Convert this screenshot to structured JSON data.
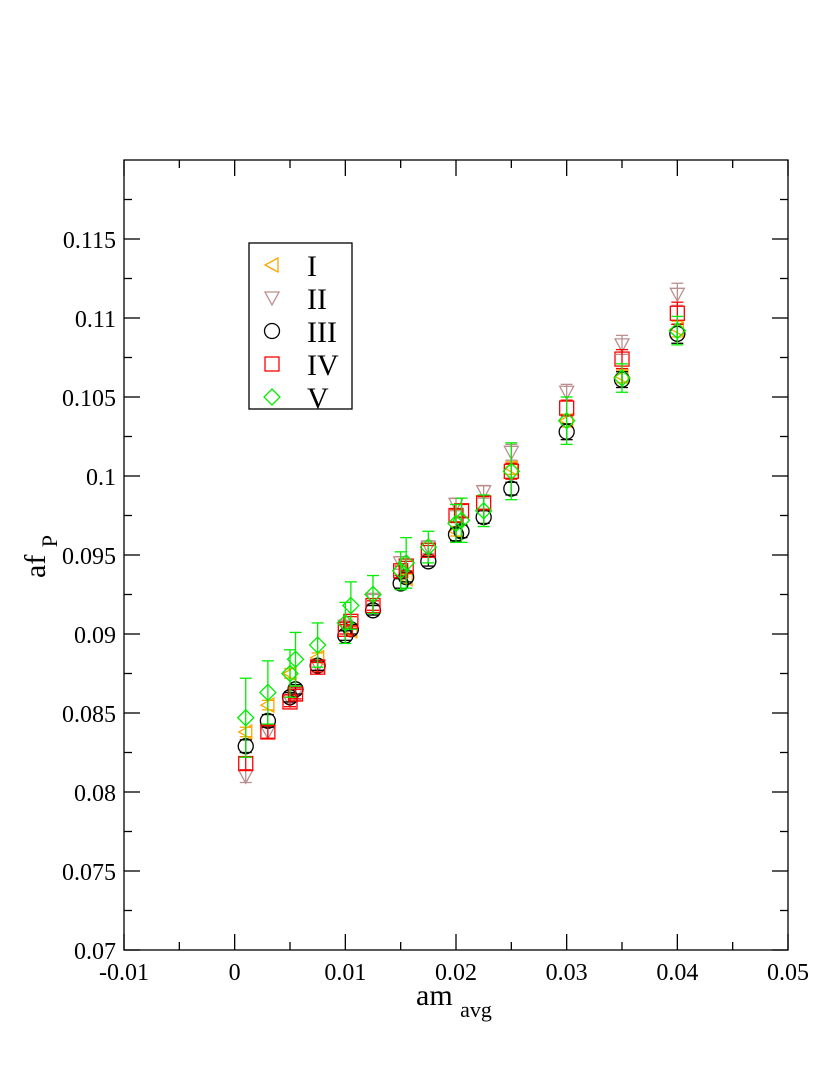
{
  "chart_data": {
    "type": "scatter",
    "title": "",
    "xlabel": "am",
    "xlabel_sub": "avg",
    "ylabel": "af",
    "ylabel_sub": "P",
    "xlim": [
      -0.01,
      0.05
    ],
    "ylim": [
      0.07,
      0.12
    ],
    "xticks": [
      -0.01,
      0,
      0.01,
      0.02,
      0.03,
      0.04,
      0.05
    ],
    "xtick_labels": [
      "-0.01",
      "0",
      "0.01",
      "0.02",
      "0.03",
      "0.04",
      "0.05"
    ],
    "yticks": [
      0.07,
      0.075,
      0.08,
      0.085,
      0.09,
      0.095,
      0.1,
      0.105,
      0.11,
      0.115
    ],
    "ytick_labels": [
      "0.07",
      "0.075",
      "0.08",
      "0.085",
      "0.09",
      "0.095",
      "0.1",
      "0.105",
      "0.11",
      "0.115"
    ],
    "grid": false,
    "legend_position": "top-left",
    "series": [
      {
        "name": "I",
        "marker": "triangle-left",
        "color": "#ffa500",
        "x": [
          0.001,
          0.003,
          0.005,
          0.0075,
          0.0105,
          0.0155,
          0.02,
          0.025,
          0.03,
          0.035,
          0.04
        ],
        "y": [
          0.0838,
          0.0855,
          0.0875,
          0.0885,
          0.0902,
          0.0935,
          0.0965,
          0.1005,
          0.1035,
          0.1063,
          0.1093
        ],
        "err": [
          0.0003,
          0.0003,
          0.0003,
          0.0003,
          0.0003,
          0.0003,
          0.0003,
          0.0004,
          0.0004,
          0.0004,
          0.0005
        ]
      },
      {
        "name": "II",
        "marker": "triangle-down",
        "color": "#bc8f8f",
        "x": [
          0.001,
          0.003,
          0.005,
          0.0055,
          0.0075,
          0.01,
          0.0125,
          0.015,
          0.0175,
          0.02,
          0.0225,
          0.025,
          0.03,
          0.035,
          0.04
        ],
        "y": [
          0.081,
          0.0838,
          0.0858,
          0.0862,
          0.088,
          0.0905,
          0.0922,
          0.0945,
          0.0955,
          0.0982,
          0.099,
          0.1015,
          0.1053,
          0.1083,
          0.1115
        ],
        "err": [
          0.0004,
          0.0004,
          0.0004,
          0.0004,
          0.0003,
          0.0003,
          0.0003,
          0.0004,
          0.0004,
          0.0004,
          0.0004,
          0.0005,
          0.0005,
          0.0006,
          0.0007
        ]
      },
      {
        "name": "III",
        "marker": "circle",
        "color": "#000000",
        "x": [
          0.001,
          0.003,
          0.005,
          0.0055,
          0.0075,
          0.01,
          0.0105,
          0.0125,
          0.015,
          0.0155,
          0.0175,
          0.02,
          0.0205,
          0.0225,
          0.025,
          0.03,
          0.035,
          0.04
        ],
        "y": [
          0.0829,
          0.0845,
          0.086,
          0.0865,
          0.088,
          0.0899,
          0.0903,
          0.0915,
          0.0932,
          0.0936,
          0.0946,
          0.0963,
          0.0965,
          0.0974,
          0.0992,
          0.1028,
          0.1061,
          0.109
        ],
        "err": [
          0.0004,
          0.0004,
          0.0003,
          0.0003,
          0.0003,
          0.0003,
          0.0003,
          0.0003,
          0.0003,
          0.0003,
          0.0003,
          0.0004,
          0.0004,
          0.0004,
          0.0004,
          0.0005,
          0.0005,
          0.0006
        ]
      },
      {
        "name": "IV",
        "marker": "square",
        "color": "#ff0000",
        "x": [
          0.001,
          0.003,
          0.005,
          0.0055,
          0.0075,
          0.01,
          0.0105,
          0.0125,
          0.015,
          0.0155,
          0.0175,
          0.02,
          0.0205,
          0.0225,
          0.025,
          0.03,
          0.035,
          0.04
        ],
        "y": [
          0.0818,
          0.0838,
          0.0857,
          0.0862,
          0.0879,
          0.0903,
          0.0908,
          0.0918,
          0.094,
          0.0943,
          0.0953,
          0.0975,
          0.0978,
          0.0983,
          0.1003,
          0.1043,
          0.1074,
          0.1103
        ],
        "err": [
          0.0004,
          0.0004,
          0.0003,
          0.0003,
          0.0003,
          0.0003,
          0.0003,
          0.0003,
          0.0003,
          0.0003,
          0.0003,
          0.0004,
          0.0004,
          0.0004,
          0.0005,
          0.0005,
          0.0006,
          0.0007
        ]
      },
      {
        "name": "V",
        "marker": "diamond",
        "color": "#00ee00",
        "x": [
          0.001,
          0.003,
          0.005,
          0.0055,
          0.0075,
          0.01,
          0.0105,
          0.0125,
          0.015,
          0.0155,
          0.0175,
          0.02,
          0.0205,
          0.0225,
          0.025,
          0.03,
          0.035,
          0.04
        ],
        "y": [
          0.0847,
          0.0863,
          0.0875,
          0.0884,
          0.0893,
          0.0907,
          0.0918,
          0.0925,
          0.094,
          0.0945,
          0.0955,
          0.097,
          0.0972,
          0.0978,
          0.1003,
          0.1035,
          0.1062,
          0.1092
        ],
        "err": [
          0.0025,
          0.002,
          0.0015,
          0.0017,
          0.0014,
          0.0013,
          0.0015,
          0.0012,
          0.0012,
          0.0016,
          0.001,
          0.0012,
          0.0014,
          0.001,
          0.0018,
          0.0015,
          0.0009,
          0.0009
        ]
      }
    ]
  }
}
